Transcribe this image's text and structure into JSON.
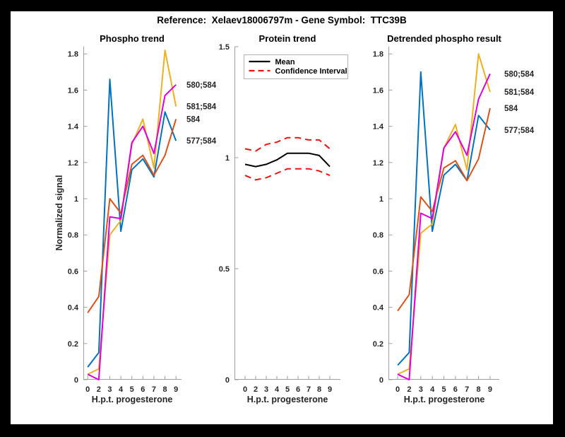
{
  "window": {
    "background_color": "#000000",
    "figure_background_color": "#ffffff",
    "axis_color": "#9e9e9e",
    "text_color": "#262626"
  },
  "header": {
    "title": "Reference:  Xelaev18006797m - Gene Symbol:  TTC39B"
  },
  "chart_data": [
    {
      "type": "line",
      "title": "Phospho trend",
      "xlabel": "H.p.t. progesterone",
      "ylabel": "Normalized signal",
      "x": [
        0,
        2,
        3,
        4,
        5,
        6,
        7,
        8,
        9
      ],
      "x_tick_labels": [
        "0",
        "2",
        "3",
        "4",
        "5",
        "6",
        "7",
        "8",
        "9"
      ],
      "y_ticks": [
        0,
        0.2,
        0.4,
        0.6,
        0.8,
        1,
        1.2,
        1.4,
        1.6,
        1.8
      ],
      "y_tick_labels": [
        "0",
        "0.2",
        "0.4",
        "0.6",
        "0.8",
        "1",
        "1.2",
        "1.4",
        "1.6",
        "1.8"
      ],
      "ylim": [
        0,
        1.84
      ],
      "xlim": [
        0.6,
        9.5
      ],
      "grid": false,
      "end_labels": true,
      "series": [
        {
          "name": "577;584",
          "color": "#0072BD",
          "style": "solid",
          "values": [
            0.07,
            0.15,
            1.66,
            0.82,
            1.16,
            1.22,
            1.12,
            1.48,
            1.32
          ]
        },
        {
          "name": "584",
          "color": "#D95319",
          "style": "solid",
          "values": [
            0.37,
            0.46,
            1.0,
            0.92,
            1.19,
            1.24,
            1.13,
            1.24,
            1.44
          ]
        },
        {
          "name": "581;584",
          "color": "#EDB120",
          "style": "solid",
          "values": [
            0.03,
            0.06,
            0.8,
            0.88,
            1.3,
            1.44,
            1.17,
            1.82,
            1.51
          ]
        },
        {
          "name": "580;584",
          "color": "#DB00DB",
          "style": "solid",
          "values": [
            0.03,
            0.0,
            0.9,
            0.89,
            1.31,
            1.4,
            1.25,
            1.57,
            1.63
          ]
        }
      ]
    },
    {
      "type": "line",
      "title": "Protein trend",
      "xlabel": "H.p.t. progesterone",
      "ylabel": "",
      "x": [
        0,
        2,
        3,
        4,
        5,
        6,
        7,
        8,
        9
      ],
      "x_tick_labels": [
        "0",
        "2",
        "3",
        "4",
        "5",
        "6",
        "7",
        "8",
        "9"
      ],
      "y_ticks": [
        0,
        0.5,
        1,
        1.5
      ],
      "y_tick_labels": [
        "0",
        "0.5",
        "1",
        "1.5"
      ],
      "ylim": [
        0,
        1.5
      ],
      "xlim": [
        0,
        10
      ],
      "grid": false,
      "end_labels": false,
      "legend": {
        "position": "northwest",
        "entries": [
          {
            "label": "Mean",
            "series_index": 0
          },
          {
            "label": "Confidence Interval",
            "series_index": 1
          }
        ]
      },
      "series": [
        {
          "name": "Mean",
          "color": "#000000",
          "style": "solid",
          "values": [
            0.97,
            0.96,
            0.97,
            0.99,
            1.02,
            1.02,
            1.02,
            1.01,
            0.96
          ]
        },
        {
          "name": "Confidence Interval upper",
          "color": "#F01010",
          "style": "dashed",
          "values": [
            1.04,
            1.03,
            1.06,
            1.07,
            1.09,
            1.09,
            1.08,
            1.08,
            1.04
          ]
        },
        {
          "name": "Confidence Interval lower",
          "color": "#F01010",
          "style": "dashed",
          "values": [
            0.92,
            0.9,
            0.91,
            0.93,
            0.95,
            0.95,
            0.95,
            0.94,
            0.92
          ]
        }
      ]
    },
    {
      "type": "line",
      "title": "Detrended phospho result",
      "xlabel": "H.p.t. progesterone",
      "ylabel": "",
      "x": [
        0,
        2,
        3,
        4,
        5,
        6,
        7,
        8,
        9
      ],
      "x_tick_labels": [
        "0",
        "2",
        "3",
        "4",
        "5",
        "6",
        "7",
        "8",
        "9"
      ],
      "y_ticks": [
        0,
        0.2,
        0.4,
        0.6,
        0.8,
        1,
        1.2,
        1.4,
        1.6,
        1.8
      ],
      "y_tick_labels": [
        "0",
        "0.2",
        "0.4",
        "0.6",
        "0.8",
        "1",
        "1.2",
        "1.4",
        "1.6",
        "1.8"
      ],
      "ylim": [
        0,
        1.84
      ],
      "xlim": [
        0.2,
        9.8
      ],
      "grid": false,
      "end_labels": true,
      "series": [
        {
          "name": "577;584",
          "color": "#0072BD",
          "style": "solid",
          "values": [
            0.08,
            0.15,
            1.7,
            0.82,
            1.13,
            1.19,
            1.1,
            1.46,
            1.38
          ]
        },
        {
          "name": "584",
          "color": "#D95319",
          "style": "solid",
          "values": [
            0.38,
            0.47,
            1.01,
            0.93,
            1.17,
            1.21,
            1.1,
            1.22,
            1.5
          ]
        },
        {
          "name": "581;584",
          "color": "#EDB120",
          "style": "solid",
          "values": [
            0.03,
            0.06,
            0.81,
            0.86,
            1.28,
            1.41,
            1.16,
            1.8,
            1.59
          ]
        },
        {
          "name": "580;584",
          "color": "#DB00DB",
          "style": "solid",
          "values": [
            0.03,
            0.0,
            0.92,
            0.89,
            1.28,
            1.37,
            1.24,
            1.55,
            1.69
          ]
        }
      ]
    }
  ]
}
